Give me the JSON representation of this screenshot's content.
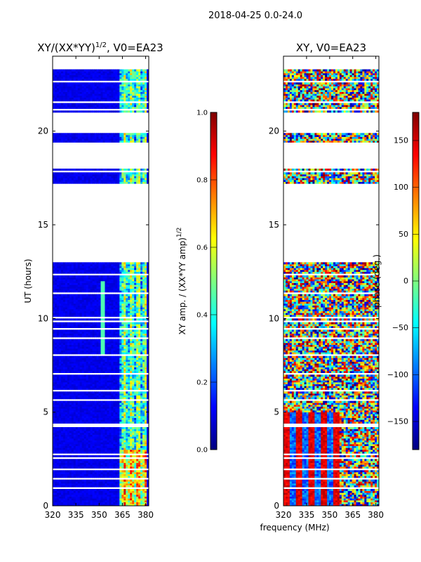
{
  "figure_title": "2018-04-25 0.0-24.0",
  "colors": {
    "jet": [
      "#00007f",
      "#0000ff",
      "#007fff",
      "#00ffff",
      "#7fff7f",
      "#ffff00",
      "#ff7f00",
      "#ff0000",
      "#7f0000"
    ]
  },
  "chart_data": [
    {
      "type": "heatmap",
      "title": "XY/(XX*YY)$^{1/2}$, V0=EA23",
      "title_main": "XY/(XX*YY)",
      "title_sup": "1/2",
      "title_tail": ", V0=EA23",
      "xlabel": "",
      "ylabel": "UT (hours)",
      "xlim": [
        320,
        382
      ],
      "ylim": [
        0,
        24
      ],
      "xticks": [
        320,
        335,
        350,
        365,
        380
      ],
      "yticks": [
        0,
        5,
        10,
        15,
        20
      ],
      "colorbar": {
        "label": "XY amp. / (XX*YY amp)",
        "label_sup": "1/2",
        "range": [
          0.0,
          1.0
        ],
        "ticks": [
          "0.0",
          "0.2",
          "0.4",
          "0.6",
          "0.8",
          "1.0"
        ]
      },
      "data_gaps_hours": [
        [
          13.0,
          17.2
        ],
        [
          18.0,
          19.3
        ],
        [
          19.9,
          21.0
        ]
      ],
      "bright_band_mhz": [
        363,
        380
      ],
      "description_values": "low amplitude (~0.05-0.2) below 363 MHz; moderate (~0.3-0.6) between 363 and 380 MHz"
    },
    {
      "type": "heatmap",
      "title": "XY, V0=EA23",
      "xlabel": "frequency (MHz)",
      "ylabel": "",
      "xlim": [
        320,
        382
      ],
      "ylim": [
        0,
        24
      ],
      "xticks": [
        320,
        335,
        350,
        365,
        380
      ],
      "yticks": [
        0,
        5,
        10,
        15,
        20
      ],
      "colorbar": {
        "label": "phase (deg.)",
        "range": [
          -180,
          180
        ],
        "ticks": [
          "−150",
          "−100",
          "−50",
          "0",
          "50",
          "100",
          "150"
        ]
      },
      "data_gaps_hours": [
        [
          13.0,
          17.2
        ],
        [
          18.0,
          19.3
        ],
        [
          19.9,
          21.0
        ]
      ]
    }
  ]
}
